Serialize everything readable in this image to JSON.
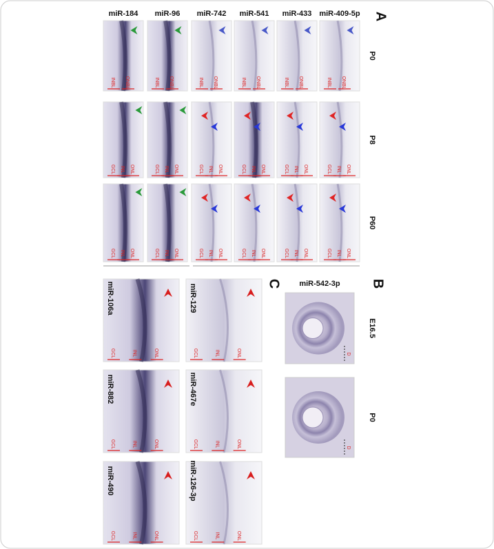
{
  "panel_a": {
    "letter": "A",
    "columns": [
      "miR-184",
      "miR-96",
      "miR-742",
      "miR-541",
      "miR-433",
      "miR-409-5p"
    ],
    "rows": [
      {
        "label": "P0",
        "layer_labels": [
          "INBL",
          "ONBL"
        ]
      },
      {
        "label": "P8",
        "layer_labels": [
          "GCL",
          "INL",
          "ONL"
        ]
      },
      {
        "label": "P60",
        "layer_labels": [
          "GCL",
          "INL",
          "ONL"
        ]
      }
    ]
  },
  "panel_b": {
    "letter": "B",
    "title": "miR-542-3p",
    "rows": [
      {
        "label": "E16.5",
        "axis_label": "D"
      },
      {
        "label": "P0",
        "axis_label": "D"
      }
    ]
  },
  "panel_c": {
    "letter": "C",
    "panels": [
      {
        "label": "miR-106a",
        "layer_labels": [
          "GCL",
          "INL",
          "ONL"
        ]
      },
      {
        "label": "miR-129",
        "layer_labels": [
          "GCL",
          "INL",
          "ONL"
        ]
      },
      {
        "label": "miR-882",
        "layer_labels": [
          "GCL",
          "INL",
          "ONL"
        ]
      },
      {
        "label": "miR-467e",
        "layer_labels": [
          "GCL",
          "INL",
          "ONL"
        ]
      },
      {
        "label": "miR-490",
        "layer_labels": [
          "GCL",
          "INL",
          "ONL"
        ]
      },
      {
        "label": "miR-126-3p",
        "layer_labels": [
          "GCL",
          "INL",
          "ONL"
        ]
      }
    ]
  }
}
